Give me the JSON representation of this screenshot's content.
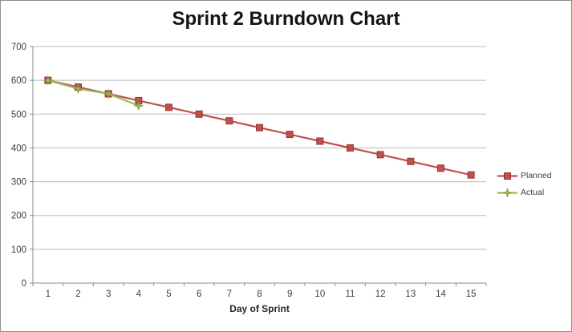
{
  "chart_data": {
    "type": "line",
    "title": "Sprint 2 Burndown Chart",
    "xlabel": "Day of Sprint",
    "ylabel": "",
    "categories": [
      "1",
      "2",
      "3",
      "4",
      "5",
      "6",
      "7",
      "8",
      "9",
      "10",
      "11",
      "12",
      "13",
      "14",
      "15"
    ],
    "ylim": [
      0,
      700
    ],
    "yticks": [
      0,
      100,
      200,
      300,
      400,
      500,
      600,
      700
    ],
    "grid": true,
    "legend_position": "right",
    "series": [
      {
        "name": "Planned",
        "marker": "square",
        "color": "#C0504D",
        "marker_stroke": "#943634",
        "values": [
          600,
          580,
          560,
          540,
          520,
          500,
          480,
          460,
          440,
          420,
          400,
          380,
          360,
          340,
          320
        ]
      },
      {
        "name": "Actual",
        "marker": "star",
        "color": "#9BBB59",
        "marker_stroke": "#77913C",
        "values": [
          600,
          575,
          560,
          525
        ]
      }
    ],
    "colors": {
      "gridline": "#b9b9b9",
      "axis": "#8c8c8c",
      "tick_label": "#3f3f3f",
      "title": "#141414"
    }
  }
}
